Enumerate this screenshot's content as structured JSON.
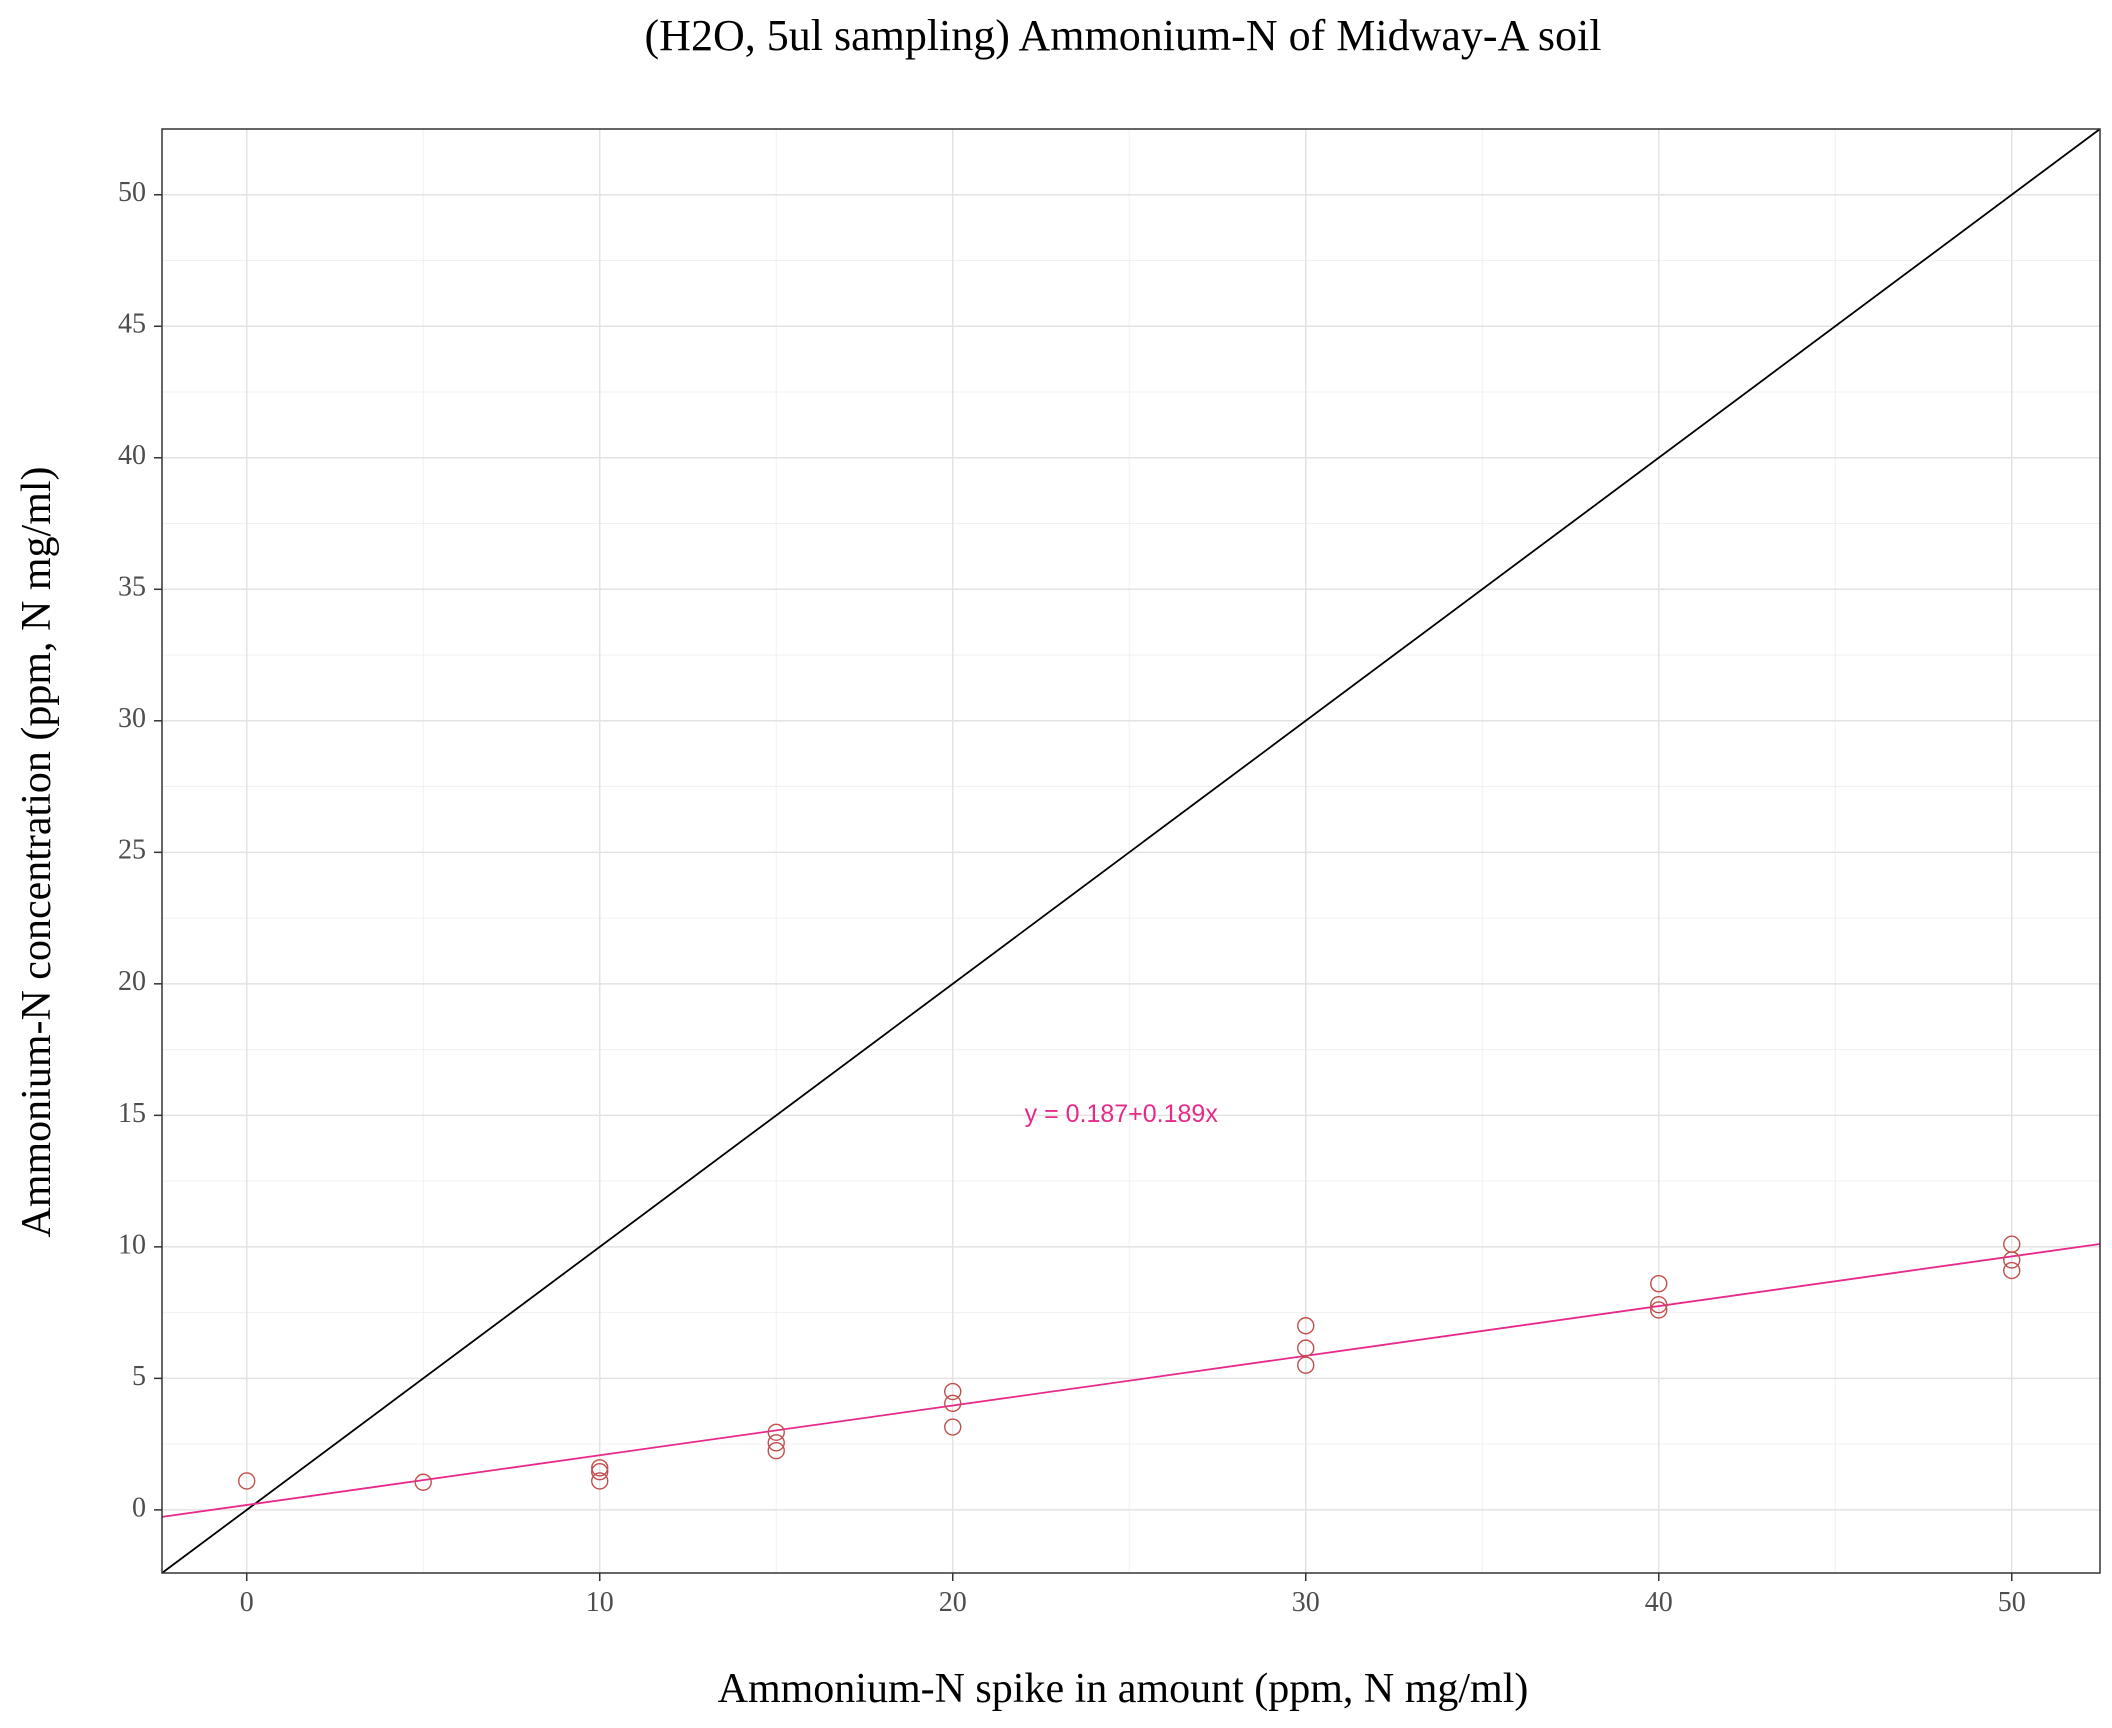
{
  "chart_data": {
    "type": "scatter",
    "title": "(H2O, 5ul sampling) Ammonium-N of Midway-A soil",
    "xlabel": "Ammonium-N spike in amount (ppm, N mg/ml)",
    "ylabel": "Ammonium-N concentration (ppm, N mg/ml)",
    "xlim": [
      -2.4,
      52.5
    ],
    "ylim": [
      -2.4,
      52.5
    ],
    "x_ticks": [
      0,
      10,
      20,
      30,
      40,
      50
    ],
    "y_ticks": [
      0,
      5,
      10,
      15,
      20,
      25,
      30,
      35,
      40,
      45,
      50
    ],
    "grid": true,
    "series": [
      {
        "marker": "open-circle",
        "color": "#c0504d",
        "points": [
          {
            "x": 0,
            "y": 1.1
          },
          {
            "x": 5,
            "y": 1.05
          },
          {
            "x": 10,
            "y": 1.6
          },
          {
            "x": 10,
            "y": 1.45
          },
          {
            "x": 10,
            "y": 1.1
          },
          {
            "x": 15,
            "y": 2.95
          },
          {
            "x": 15,
            "y": 2.55
          },
          {
            "x": 15,
            "y": 2.25
          },
          {
            "x": 20,
            "y": 4.5
          },
          {
            "x": 20,
            "y": 4.05
          },
          {
            "x": 20,
            "y": 3.15
          },
          {
            "x": 30,
            "y": 7.0
          },
          {
            "x": 30,
            "y": 6.15
          },
          {
            "x": 30,
            "y": 5.5
          },
          {
            "x": 40,
            "y": 8.6
          },
          {
            "x": 40,
            "y": 7.8
          },
          {
            "x": 40,
            "y": 7.6
          },
          {
            "x": 50,
            "y": 10.1
          },
          {
            "x": 50,
            "y": 9.5
          },
          {
            "x": 50,
            "y": 9.1
          }
        ]
      }
    ],
    "lines": [
      {
        "kind": "identity",
        "intercept": 0,
        "slope": 1,
        "color": "#000000"
      },
      {
        "kind": "fit",
        "intercept": 0.187,
        "slope": 0.189,
        "color": "#e7298a"
      }
    ],
    "annotations": [
      {
        "text": "y = 0.187+0.189x",
        "x": 25,
        "y": 15,
        "color": "#e7298a"
      }
    ]
  }
}
